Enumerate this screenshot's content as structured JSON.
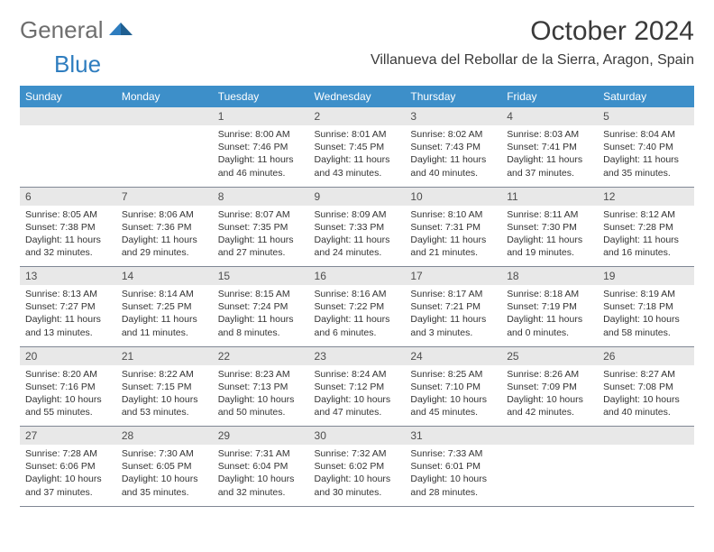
{
  "logo": {
    "text1": "General",
    "text2": "Blue"
  },
  "title": "October 2024",
  "location": "Villanueva del Rebollar de la Sierra, Aragon, Spain",
  "weekdays": [
    "Sunday",
    "Monday",
    "Tuesday",
    "Wednesday",
    "Thursday",
    "Friday",
    "Saturday"
  ],
  "colors": {
    "header_bg": "#3d8fc9",
    "daynum_bg": "#e8e8e8",
    "border": "#808794",
    "logo_gray": "#6e6e6e",
    "logo_blue": "#2e7dbf"
  },
  "weeks": [
    [
      {
        "num": "",
        "sunrise": "",
        "sunset": "",
        "daylight": ""
      },
      {
        "num": "",
        "sunrise": "",
        "sunset": "",
        "daylight": ""
      },
      {
        "num": "1",
        "sunrise": "Sunrise: 8:00 AM",
        "sunset": "Sunset: 7:46 PM",
        "daylight": "Daylight: 11 hours and 46 minutes."
      },
      {
        "num": "2",
        "sunrise": "Sunrise: 8:01 AM",
        "sunset": "Sunset: 7:45 PM",
        "daylight": "Daylight: 11 hours and 43 minutes."
      },
      {
        "num": "3",
        "sunrise": "Sunrise: 8:02 AM",
        "sunset": "Sunset: 7:43 PM",
        "daylight": "Daylight: 11 hours and 40 minutes."
      },
      {
        "num": "4",
        "sunrise": "Sunrise: 8:03 AM",
        "sunset": "Sunset: 7:41 PM",
        "daylight": "Daylight: 11 hours and 37 minutes."
      },
      {
        "num": "5",
        "sunrise": "Sunrise: 8:04 AM",
        "sunset": "Sunset: 7:40 PM",
        "daylight": "Daylight: 11 hours and 35 minutes."
      }
    ],
    [
      {
        "num": "6",
        "sunrise": "Sunrise: 8:05 AM",
        "sunset": "Sunset: 7:38 PM",
        "daylight": "Daylight: 11 hours and 32 minutes."
      },
      {
        "num": "7",
        "sunrise": "Sunrise: 8:06 AM",
        "sunset": "Sunset: 7:36 PM",
        "daylight": "Daylight: 11 hours and 29 minutes."
      },
      {
        "num": "8",
        "sunrise": "Sunrise: 8:07 AM",
        "sunset": "Sunset: 7:35 PM",
        "daylight": "Daylight: 11 hours and 27 minutes."
      },
      {
        "num": "9",
        "sunrise": "Sunrise: 8:09 AM",
        "sunset": "Sunset: 7:33 PM",
        "daylight": "Daylight: 11 hours and 24 minutes."
      },
      {
        "num": "10",
        "sunrise": "Sunrise: 8:10 AM",
        "sunset": "Sunset: 7:31 PM",
        "daylight": "Daylight: 11 hours and 21 minutes."
      },
      {
        "num": "11",
        "sunrise": "Sunrise: 8:11 AM",
        "sunset": "Sunset: 7:30 PM",
        "daylight": "Daylight: 11 hours and 19 minutes."
      },
      {
        "num": "12",
        "sunrise": "Sunrise: 8:12 AM",
        "sunset": "Sunset: 7:28 PM",
        "daylight": "Daylight: 11 hours and 16 minutes."
      }
    ],
    [
      {
        "num": "13",
        "sunrise": "Sunrise: 8:13 AM",
        "sunset": "Sunset: 7:27 PM",
        "daylight": "Daylight: 11 hours and 13 minutes."
      },
      {
        "num": "14",
        "sunrise": "Sunrise: 8:14 AM",
        "sunset": "Sunset: 7:25 PM",
        "daylight": "Daylight: 11 hours and 11 minutes."
      },
      {
        "num": "15",
        "sunrise": "Sunrise: 8:15 AM",
        "sunset": "Sunset: 7:24 PM",
        "daylight": "Daylight: 11 hours and 8 minutes."
      },
      {
        "num": "16",
        "sunrise": "Sunrise: 8:16 AM",
        "sunset": "Sunset: 7:22 PM",
        "daylight": "Daylight: 11 hours and 6 minutes."
      },
      {
        "num": "17",
        "sunrise": "Sunrise: 8:17 AM",
        "sunset": "Sunset: 7:21 PM",
        "daylight": "Daylight: 11 hours and 3 minutes."
      },
      {
        "num": "18",
        "sunrise": "Sunrise: 8:18 AM",
        "sunset": "Sunset: 7:19 PM",
        "daylight": "Daylight: 11 hours and 0 minutes."
      },
      {
        "num": "19",
        "sunrise": "Sunrise: 8:19 AM",
        "sunset": "Sunset: 7:18 PM",
        "daylight": "Daylight: 10 hours and 58 minutes."
      }
    ],
    [
      {
        "num": "20",
        "sunrise": "Sunrise: 8:20 AM",
        "sunset": "Sunset: 7:16 PM",
        "daylight": "Daylight: 10 hours and 55 minutes."
      },
      {
        "num": "21",
        "sunrise": "Sunrise: 8:22 AM",
        "sunset": "Sunset: 7:15 PM",
        "daylight": "Daylight: 10 hours and 53 minutes."
      },
      {
        "num": "22",
        "sunrise": "Sunrise: 8:23 AM",
        "sunset": "Sunset: 7:13 PM",
        "daylight": "Daylight: 10 hours and 50 minutes."
      },
      {
        "num": "23",
        "sunrise": "Sunrise: 8:24 AM",
        "sunset": "Sunset: 7:12 PM",
        "daylight": "Daylight: 10 hours and 47 minutes."
      },
      {
        "num": "24",
        "sunrise": "Sunrise: 8:25 AM",
        "sunset": "Sunset: 7:10 PM",
        "daylight": "Daylight: 10 hours and 45 minutes."
      },
      {
        "num": "25",
        "sunrise": "Sunrise: 8:26 AM",
        "sunset": "Sunset: 7:09 PM",
        "daylight": "Daylight: 10 hours and 42 minutes."
      },
      {
        "num": "26",
        "sunrise": "Sunrise: 8:27 AM",
        "sunset": "Sunset: 7:08 PM",
        "daylight": "Daylight: 10 hours and 40 minutes."
      }
    ],
    [
      {
        "num": "27",
        "sunrise": "Sunrise: 7:28 AM",
        "sunset": "Sunset: 6:06 PM",
        "daylight": "Daylight: 10 hours and 37 minutes."
      },
      {
        "num": "28",
        "sunrise": "Sunrise: 7:30 AM",
        "sunset": "Sunset: 6:05 PM",
        "daylight": "Daylight: 10 hours and 35 minutes."
      },
      {
        "num": "29",
        "sunrise": "Sunrise: 7:31 AM",
        "sunset": "Sunset: 6:04 PM",
        "daylight": "Daylight: 10 hours and 32 minutes."
      },
      {
        "num": "30",
        "sunrise": "Sunrise: 7:32 AM",
        "sunset": "Sunset: 6:02 PM",
        "daylight": "Daylight: 10 hours and 30 minutes."
      },
      {
        "num": "31",
        "sunrise": "Sunrise: 7:33 AM",
        "sunset": "Sunset: 6:01 PM",
        "daylight": "Daylight: 10 hours and 28 minutes."
      },
      {
        "num": "",
        "sunrise": "",
        "sunset": "",
        "daylight": ""
      },
      {
        "num": "",
        "sunrise": "",
        "sunset": "",
        "daylight": ""
      }
    ]
  ]
}
